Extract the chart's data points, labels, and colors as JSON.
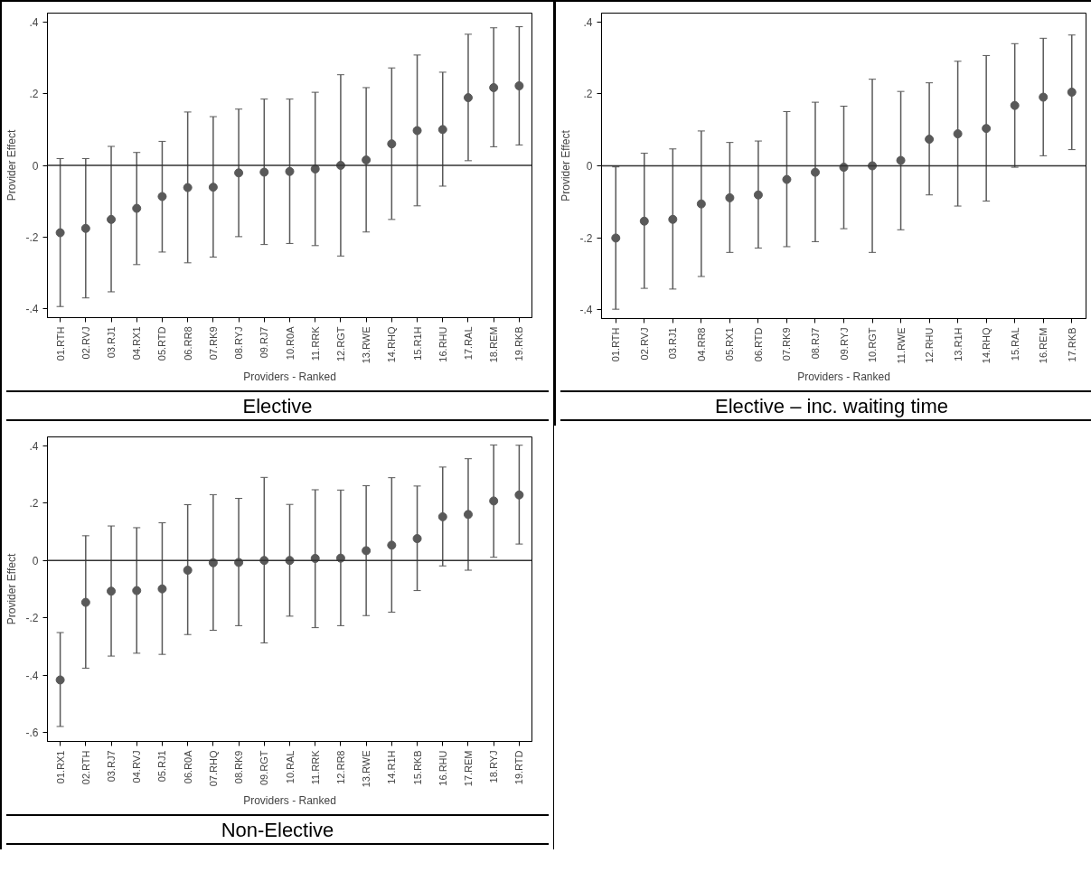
{
  "chart_data": [
    {
      "type": "scatter",
      "title": "Elective",
      "xlabel": "Providers - Ranked",
      "ylabel": "Provider Effect",
      "categories": [
        "01.RTH",
        "02.RVJ",
        "03.RJ1",
        "04.RX1",
        "05.RTD",
        "06.RR8",
        "07.RK9",
        "08.RYJ",
        "09.RJ7",
        "10.R0A",
        "11.RRK",
        "12.RGT",
        "13.RWE",
        "14.RHQ",
        "15.R1H",
        "16.RHU",
        "17.RAL",
        "18.REM",
        "19.RKB"
      ],
      "series": [
        {
          "color": "#595959",
          "values": [
            -0.188,
            -0.176,
            -0.151,
            -0.12,
            -0.087,
            -0.062,
            -0.061,
            -0.021,
            -0.019,
            -0.017,
            -0.01,
            0.0,
            0.015,
            0.06,
            0.097,
            0.1,
            0.189,
            0.217,
            0.222
          ],
          "errors": [
            [
              -0.394,
              0.019
            ],
            [
              -0.37,
              0.019
            ],
            [
              -0.353,
              0.053
            ],
            [
              -0.277,
              0.036
            ],
            [
              -0.242,
              0.067
            ],
            [
              -0.272,
              0.149
            ],
            [
              -0.256,
              0.136
            ],
            [
              -0.199,
              0.157
            ],
            [
              -0.221,
              0.185
            ],
            [
              -0.218,
              0.185
            ],
            [
              -0.224,
              0.204
            ],
            [
              -0.253,
              0.253
            ],
            [
              -0.186,
              0.217
            ],
            [
              -0.151,
              0.272
            ],
            [
              -0.113,
              0.308
            ],
            [
              -0.058,
              0.26
            ],
            [
              0.013,
              0.366
            ],
            [
              0.052,
              0.384
            ],
            [
              0.057,
              0.387
            ]
          ]
        }
      ],
      "ylim": [
        -0.425,
        0.425
      ],
      "yticks": [
        {
          "value": -0.4,
          "label": "-.4"
        },
        {
          "value": -0.2,
          "label": "-.2"
        },
        0,
        {
          "value": 0.2,
          "label": ".2"
        },
        {
          "value": 0.4,
          "label": ".4"
        }
      ],
      "ref_lines": [
        {
          "axis": "y",
          "value": 0,
          "color": "#333333"
        }
      ],
      "grid": false,
      "marker": "circle"
    },
    {
      "type": "scatter",
      "title": "Elective – inc. waiting time",
      "xlabel": "Providers - Ranked",
      "ylabel": "Provider Effect",
      "categories": [
        "01.RTH",
        "02.RVJ",
        "03.RJ1",
        "04.RR8",
        "05.RX1",
        "06.RTD",
        "07.RK9",
        "08.RJ7",
        "09.RYJ",
        "10.RGT",
        "11.RWE",
        "12.RHU",
        "13.R1H",
        "14.RHQ",
        "15.RAL",
        "16.REM",
        "17.RKB"
      ],
      "series": [
        {
          "color": "#595959",
          "values": [
            -0.201,
            -0.154,
            -0.149,
            -0.106,
            -0.089,
            -0.081,
            -0.038,
            -0.018,
            -0.004,
            0.0,
            0.015,
            0.074,
            0.089,
            0.104,
            0.168,
            0.191,
            0.205
          ],
          "errors": [
            [
              -0.399,
              -0.003
            ],
            [
              -0.341,
              0.035
            ],
            [
              -0.343,
              0.047
            ],
            [
              -0.308,
              0.097
            ],
            [
              -0.241,
              0.065
            ],
            [
              -0.229,
              0.069
            ],
            [
              -0.225,
              0.151
            ],
            [
              -0.211,
              0.177
            ],
            [
              -0.175,
              0.166
            ],
            [
              -0.241,
              0.241
            ],
            [
              -0.178,
              0.207
            ],
            [
              -0.081,
              0.231
            ],
            [
              -0.112,
              0.291
            ],
            [
              -0.098,
              0.307
            ],
            [
              -0.004,
              0.34
            ],
            [
              0.028,
              0.355
            ],
            [
              0.045,
              0.364
            ]
          ]
        }
      ],
      "ylim": [
        -0.425,
        0.425
      ],
      "yticks": [
        {
          "value": -0.4,
          "label": "-.4"
        },
        {
          "value": -0.2,
          "label": "-.2"
        },
        0,
        {
          "value": 0.2,
          "label": ".2"
        },
        {
          "value": 0.4,
          "label": ".4"
        }
      ],
      "ref_lines": [
        {
          "axis": "y",
          "value": 0,
          "color": "#333333"
        }
      ],
      "grid": false,
      "marker": "circle"
    },
    {
      "type": "scatter",
      "title": "Non-Elective",
      "xlabel": "Providers - Ranked",
      "ylabel": "Provider Effect",
      "categories": [
        "01.RX1",
        "02.RTH",
        "03.RJ7",
        "04.RVJ",
        "05.RJ1",
        "06.R0A",
        "07.RHQ",
        "08.RK9",
        "09.RGT",
        "10.RAL",
        "11.RRK",
        "12.RR8",
        "13.RWE",
        "14.R1H",
        "15.RKB",
        "16.RHU",
        "17.REM",
        "18.RYJ",
        "19.RTD"
      ],
      "series": [
        {
          "color": "#595959",
          "values": [
            -0.416,
            -0.146,
            -0.107,
            -0.105,
            -0.099,
            -0.034,
            -0.008,
            -0.007,
            0.0,
            0.0,
            0.007,
            0.008,
            0.034,
            0.053,
            0.076,
            0.152,
            0.16,
            0.207,
            0.228
          ],
          "errors": [
            [
              -0.578,
              -0.251
            ],
            [
              -0.375,
              0.086
            ],
            [
              -0.333,
              0.12
            ],
            [
              -0.323,
              0.114
            ],
            [
              -0.327,
              0.131
            ],
            [
              -0.258,
              0.194
            ],
            [
              -0.243,
              0.229
            ],
            [
              -0.227,
              0.216
            ],
            [
              -0.287,
              0.289
            ],
            [
              -0.194,
              0.195
            ],
            [
              -0.234,
              0.246
            ],
            [
              -0.227,
              0.245
            ],
            [
              -0.192,
              0.26
            ],
            [
              -0.18,
              0.288
            ],
            [
              -0.105,
              0.259
            ],
            [
              -0.019,
              0.325
            ],
            [
              -0.034,
              0.354
            ],
            [
              0.011,
              0.402
            ],
            [
              0.057,
              0.401
            ]
          ]
        }
      ],
      "ylim": [
        -0.63,
        0.43
      ],
      "yticks": [
        {
          "value": -0.6,
          "label": "-.6"
        },
        {
          "value": -0.4,
          "label": "-.4"
        },
        {
          "value": -0.2,
          "label": "-.2"
        },
        0,
        {
          "value": 0.2,
          "label": ".2"
        },
        {
          "value": 0.4,
          "label": ".4"
        }
      ],
      "ref_lines": [
        {
          "axis": "y",
          "value": 0,
          "color": "#333333"
        }
      ],
      "grid": false,
      "marker": "circle"
    }
  ]
}
